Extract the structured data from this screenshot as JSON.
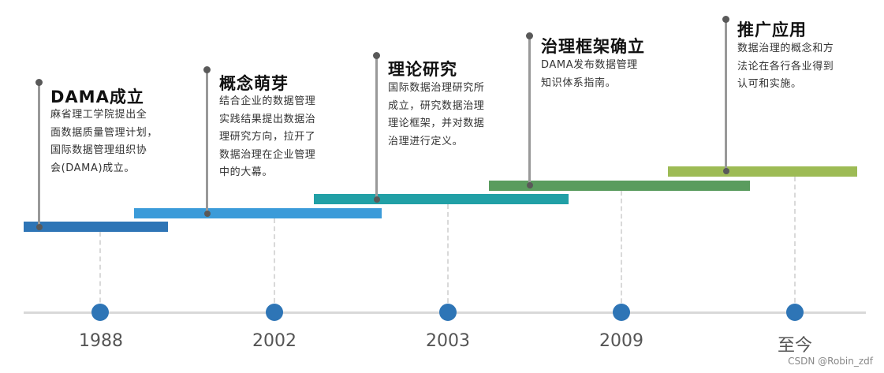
{
  "colors": {
    "axis": "#d9d9d9",
    "dot": "#2e75b6",
    "bar1": "#2e75b6",
    "bar2": "#3b9bd9",
    "bar3": "#21a0a6",
    "bar4": "#5a9c5e",
    "bar5": "#9dbb55"
  },
  "years": [
    "1988",
    "2002",
    "2003",
    "2009",
    "至今"
  ],
  "milestones": [
    {
      "title": "DAMA成立",
      "desc": [
        "麻省理工学院提出全",
        "面数据质量管理计划，",
        "国际数据管理组织协",
        "会(DAMA)成立。"
      ]
    },
    {
      "title": "概念萌芽",
      "desc": [
        "结合企业的数据管理",
        "实践结果提出数据治",
        "理研究方向，拉开了",
        "数据治理在企业管理",
        "中的大幕。"
      ]
    },
    {
      "title": "理论研究",
      "desc": [
        "国际数据治理研究所",
        "成立，研究数据治理",
        "理论框架，并对数据",
        "治理进行定义。"
      ]
    },
    {
      "title": "治理框架确立",
      "desc": [
        "DAMA发布数据管理",
        "知识体系指南。"
      ]
    },
    {
      "title": "推广应用",
      "desc": [
        "数据治理的概念和方",
        "法论在各行各业得到",
        "认可和实施。"
      ]
    }
  ],
  "watermark": "CSDN @Robin_zdf"
}
